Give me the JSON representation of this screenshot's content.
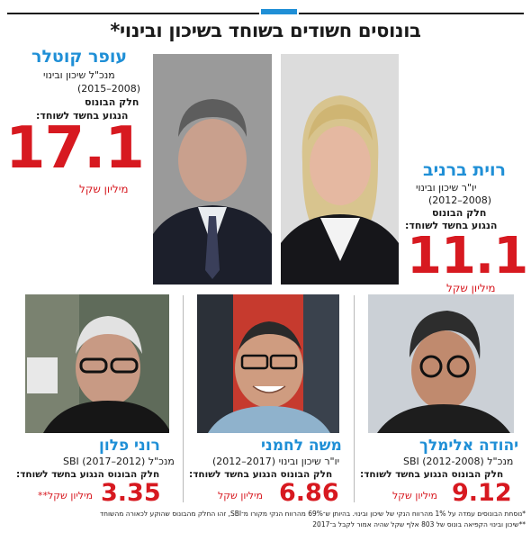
{
  "title": "בונוסים חשודים בשוחד בשיכון ובינוי*",
  "colors": {
    "accent": "#1f8fd6",
    "amount": "#d71920",
    "text": "#1a1a1a"
  },
  "people": {
    "kotler": {
      "name": "עופר קוטלר",
      "role": "מנכ\"ל שיכון ובינוי",
      "years": "(2015–2008)",
      "label1": "חלק הבונוס",
      "label2": "הנגוע בחשד לשוחד:",
      "amount": "17.1",
      "unit": "מיליון שקל"
    },
    "barniv": {
      "name": "רוית ברניב",
      "role": "יו\"ר שיכון ובינוי",
      "years": "(2012–2008)",
      "label1": "חלק הבונוס",
      "label2": "הנגוע בחשד לשוחד:",
      "amount": "11.1",
      "unit": "מיליון שקל"
    },
    "elimelech": {
      "name": "יהודה אלימלך",
      "role": "מנכ\"ל SBI (2012-2008)",
      "label": "חלק הבונוס הנגוע בחשד לשוחד:",
      "amount": "9.12",
      "unit": "מיליון שקל"
    },
    "lahmani": {
      "name": "משה לחמני",
      "role": "יו\"ר שיכון ובינוי (2017–2012)",
      "label": "חלק הבונוס הנגוע בחשד לשוחד:",
      "amount": "6.86",
      "unit": "מיליון שקל"
    },
    "palon": {
      "name": "רוני פלון",
      "role": "מנכ\"ל SBI (2017–2012)",
      "label": "חלק הבונוס הנגוע בחשד לשוחד:",
      "amount": "3.35",
      "unit": "מיליון שקל**"
    }
  },
  "footnotes": {
    "line1": "*נוסחת הבונוסים עמדה על 1% מהרווח הנקי של שיכון ובינוי. בהיותן ש־69% מהרווח הנקי מקורו מ־SBI, זהו החלק מהבונוס שהוקע לכאורה מהשוחד",
    "line2": "**שיכון ובינוי הקפיאה בונוס של 803 אלף שקל שהיה אמור לקבל ב־2017"
  }
}
